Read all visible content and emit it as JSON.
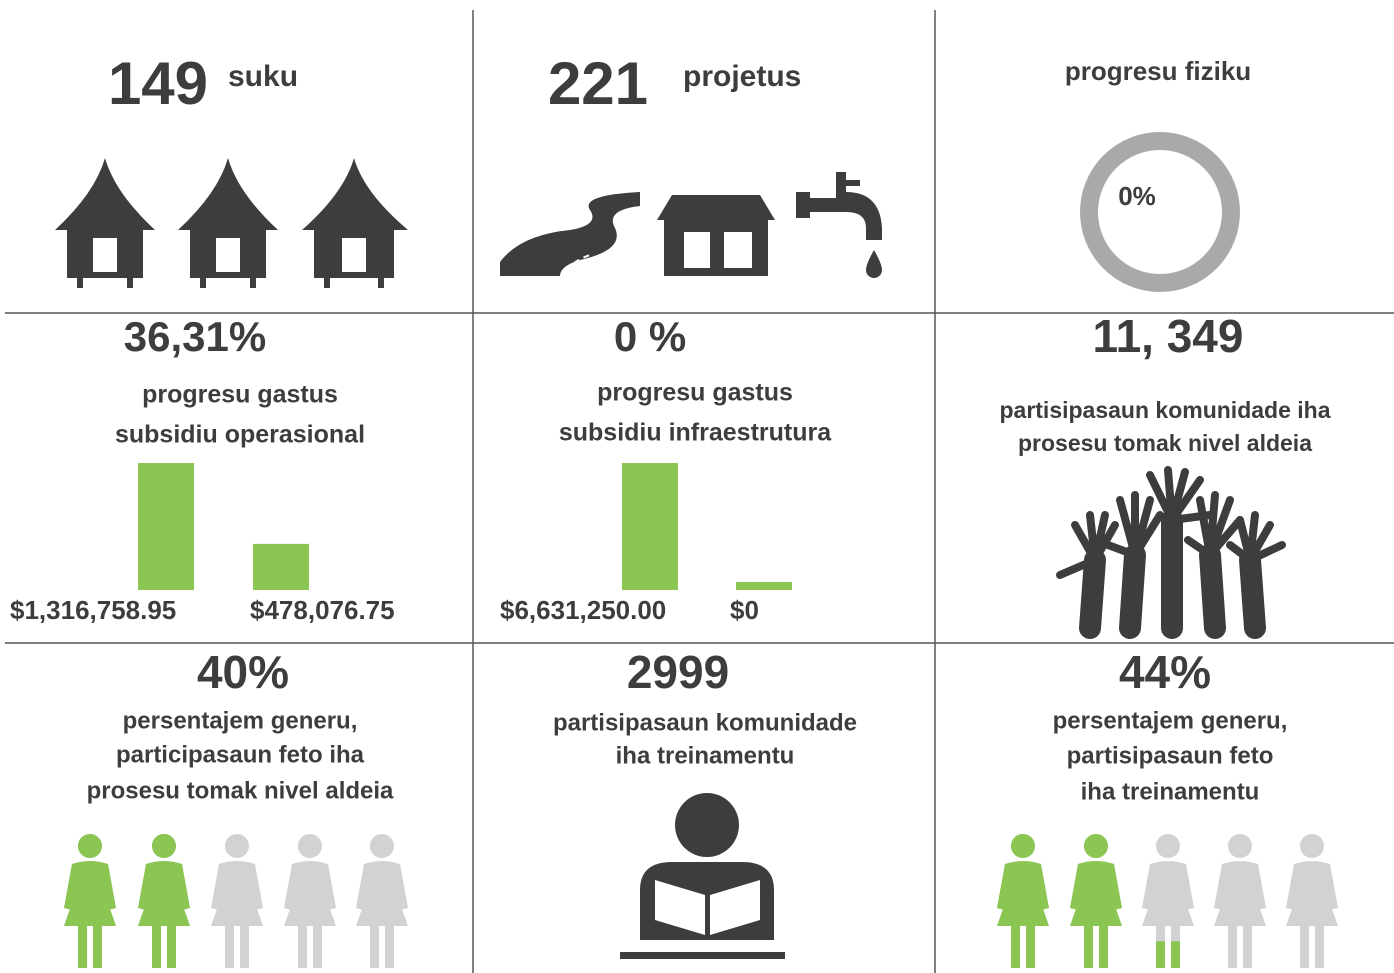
{
  "cells": [
    {
      "number": "149",
      "unit": "suku"
    },
    {
      "number": "221",
      "unit": "projetus"
    },
    {
      "title": "progresu fiziku",
      "progress": {
        "value": 0,
        "label": "0%"
      }
    },
    {
      "number": "36,31%",
      "lines": [
        "progresu gastus",
        "subsidiu operasional"
      ],
      "bars": [
        {
          "value": 1316758.95,
          "label": "$1,316,758.95"
        },
        {
          "value": 478076.75,
          "label": "$478,076.75"
        }
      ]
    },
    {
      "number": "0 %",
      "lines": [
        "progresu gastus",
        "subsidiu infraestrutura"
      ],
      "bars": [
        {
          "value": 6631250.0,
          "label": "$6,631,250.00"
        },
        {
          "value": 0,
          "label": "$0"
        }
      ]
    },
    {
      "number": "11, 349",
      "lines": [
        "partisipasaun komunidade iha",
        "prosesu tomak nivel aldeia"
      ]
    },
    {
      "percent": {
        "value": 40,
        "label": "40%"
      },
      "lines": [
        "persentajem generu,",
        "participasaun feto iha",
        "prosesu tomak nivel aldeia"
      ]
    },
    {
      "number": "2999",
      "lines": [
        "partisipasaun komunidade",
        "iha treinamentu"
      ]
    },
    {
      "percent": {
        "value": 44,
        "label": "44%"
      },
      "lines": [
        "persentajem generu,",
        "partisipasaun feto",
        "iha treinamentu"
      ]
    }
  ]
}
